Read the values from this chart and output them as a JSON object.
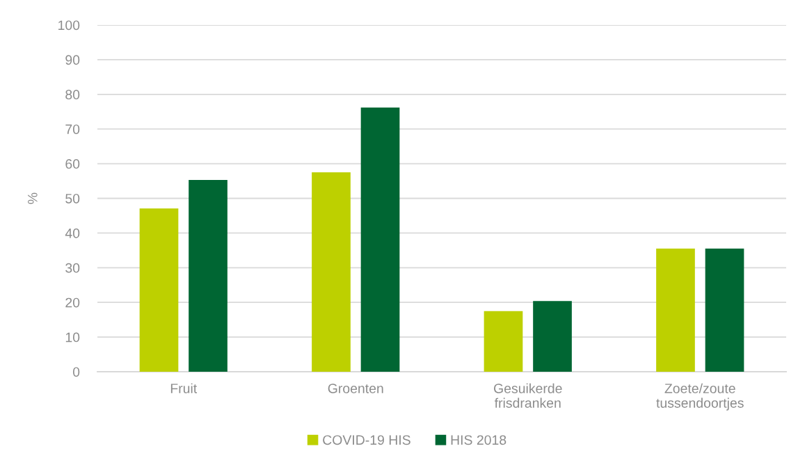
{
  "chart_data": {
    "type": "bar",
    "ylabel": "%",
    "categories": [
      "Fruit",
      "Groenten",
      "Gesuikerde\nfrisdranken",
      "Zoete/zoute\ntussendoortjes"
    ],
    "series": [
      {
        "name": "COVID-19 HIS",
        "color": "#bdd000",
        "values": [
          47.1,
          57.5,
          17.5,
          35.5
        ]
      },
      {
        "name": "HIS 2018",
        "color": "#006633",
        "values": [
          55.3,
          76.2,
          20.4,
          35.5
        ]
      }
    ],
    "ylim": [
      0,
      100
    ],
    "yticks": [
      0,
      10,
      20,
      30,
      40,
      50,
      60,
      70,
      80,
      90,
      100
    ],
    "grid": "y",
    "legend": "bottom"
  }
}
